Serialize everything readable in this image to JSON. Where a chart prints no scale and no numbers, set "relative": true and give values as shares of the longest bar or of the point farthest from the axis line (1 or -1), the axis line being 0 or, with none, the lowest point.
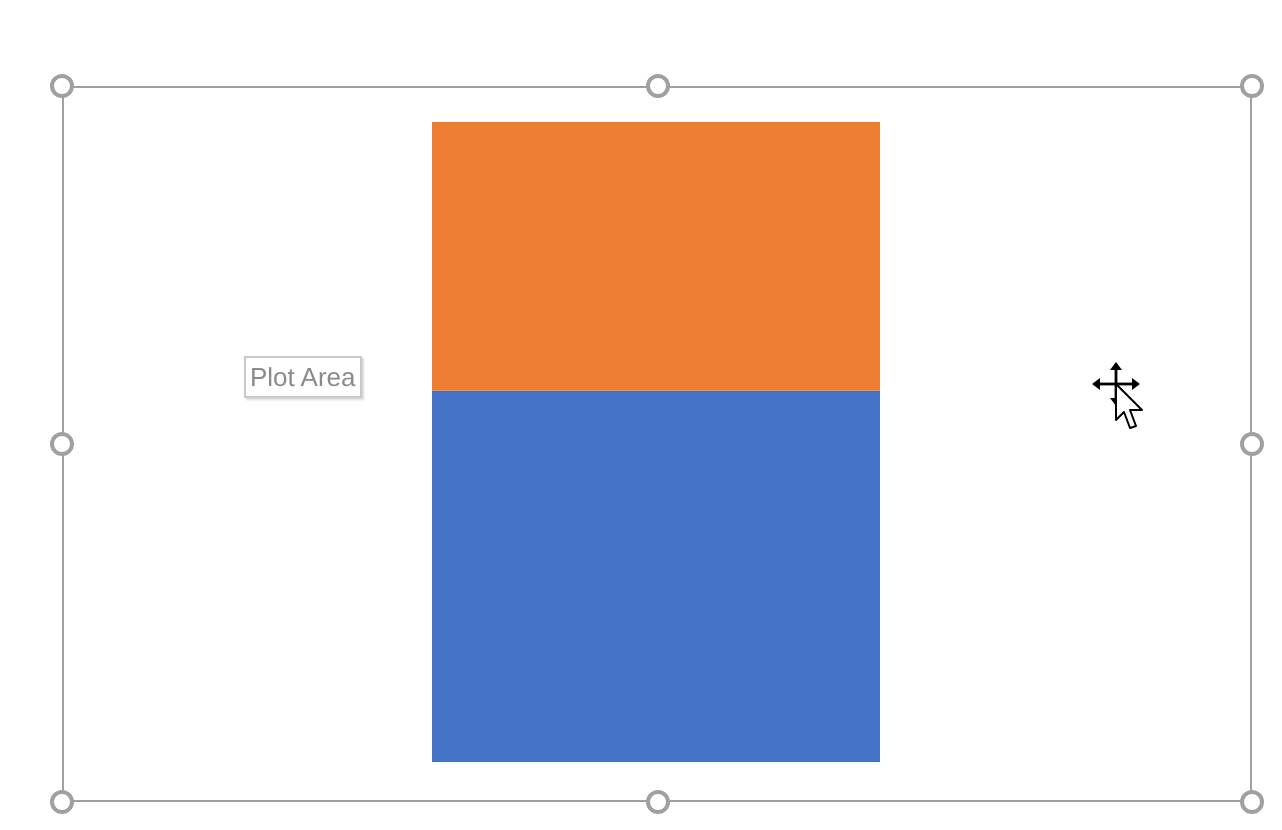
{
  "chart_data": {
    "type": "bar",
    "categories": [
      null
    ],
    "stacked": true,
    "relative": true,
    "series": [
      {
        "color": "#4472c4",
        "values": [
          0.58
        ]
      },
      {
        "color": "#ed7d31",
        "values": [
          0.42
        ]
      }
    ],
    "annotations": [
      "Plot Area"
    ]
  }
}
